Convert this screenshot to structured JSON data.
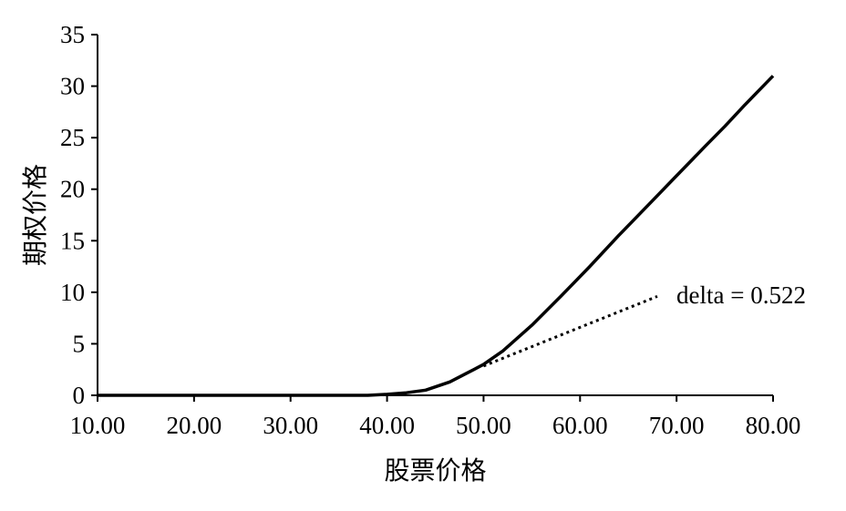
{
  "chart_data": {
    "type": "line",
    "title": "",
    "xlabel": "股票价格",
    "ylabel": "期权价格",
    "xlim": [
      10,
      80
    ],
    "ylim": [
      0,
      35
    ],
    "xticks": [
      10,
      20,
      30,
      40,
      50,
      60,
      70,
      80
    ],
    "xtick_labels": [
      "10.00",
      "20.00",
      "30.00",
      "40.00",
      "50.00",
      "60.00",
      "70.00",
      "80.00"
    ],
    "yticks": [
      0,
      5,
      10,
      15,
      20,
      25,
      30,
      35
    ],
    "ytick_labels": [
      "0",
      "5",
      "10",
      "15",
      "20",
      "25",
      "30",
      "35"
    ],
    "grid": false,
    "series": [
      {
        "style": "solid",
        "color": "#000000",
        "x": [
          10,
          20,
          30,
          38,
          40,
          42,
          44,
          46.5,
          49,
          50,
          52,
          55,
          58,
          61,
          64,
          67,
          70,
          73,
          75,
          77,
          80
        ],
        "y": [
          0,
          0,
          0,
          0,
          0.1,
          0.25,
          0.5,
          1.3,
          2.5,
          3.0,
          4.3,
          6.8,
          9.6,
          12.5,
          15.5,
          18.4,
          21.3,
          24.2,
          26.1,
          28.1,
          31.0
        ]
      },
      {
        "style": "dotted",
        "color": "#000000",
        "x": [
          50,
          68
        ],
        "y": [
          2.85,
          9.6
        ]
      }
    ],
    "annotations": [
      {
        "text": "delta = 0.522"
      }
    ]
  }
}
